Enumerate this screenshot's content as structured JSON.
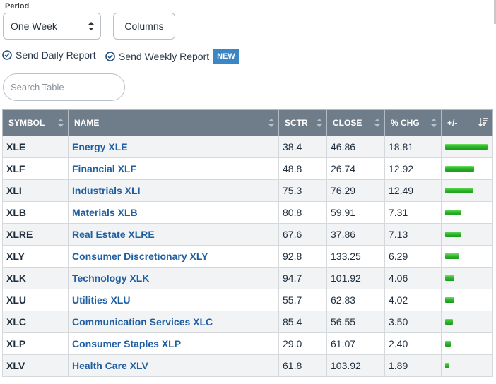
{
  "period": {
    "label": "Period",
    "selected": "One Week"
  },
  "columns_button": "Columns",
  "reports": {
    "daily": "Send Daily Report",
    "weekly": "Send Weekly Report",
    "new_badge": "NEW"
  },
  "search": {
    "placeholder": "Search Table"
  },
  "colors": {
    "header_bg": "#6f7c89",
    "name_link": "#1f5fa1",
    "bar_green": "#2fb52a",
    "badge_blue": "#3b86c4"
  },
  "table": {
    "headers": {
      "symbol": "SYMBOL",
      "name": "NAME",
      "sctr": "SCTR",
      "close": "CLOSE",
      "chg": "% CHG",
      "plusminus": "+/-"
    },
    "rows": [
      {
        "symbol": "XLE",
        "name": "Energy XLE",
        "sctr": "38.4",
        "close": "46.86",
        "chg": "18.81"
      },
      {
        "symbol": "XLF",
        "name": "Financial XLF",
        "sctr": "48.8",
        "close": "26.74",
        "chg": "12.92"
      },
      {
        "symbol": "XLI",
        "name": "Industrials XLI",
        "sctr": "75.3",
        "close": "76.29",
        "chg": "12.49"
      },
      {
        "symbol": "XLB",
        "name": "Materials XLB",
        "sctr": "80.8",
        "close": "59.91",
        "chg": "7.31"
      },
      {
        "symbol": "XLRE",
        "name": "Real Estate XLRE",
        "sctr": "67.6",
        "close": "37.86",
        "chg": "7.13"
      },
      {
        "symbol": "XLY",
        "name": "Consumer Discretionary XLY",
        "sctr": "92.8",
        "close": "133.25",
        "chg": "6.29"
      },
      {
        "symbol": "XLK",
        "name": "Technology XLK",
        "sctr": "94.7",
        "close": "101.92",
        "chg": "4.06"
      },
      {
        "symbol": "XLU",
        "name": "Utilities XLU",
        "sctr": "55.7",
        "close": "62.83",
        "chg": "4.02"
      },
      {
        "symbol": "XLC",
        "name": "Communication Services XLC",
        "sctr": "85.4",
        "close": "56.55",
        "chg": "3.50"
      },
      {
        "symbol": "XLP",
        "name": "Consumer Staples XLP",
        "sctr": "29.0",
        "close": "61.07",
        "chg": "2.40"
      },
      {
        "symbol": "XLV",
        "name": "Health Care XLV",
        "sctr": "61.8",
        "close": "103.92",
        "chg": "1.89"
      }
    ]
  }
}
